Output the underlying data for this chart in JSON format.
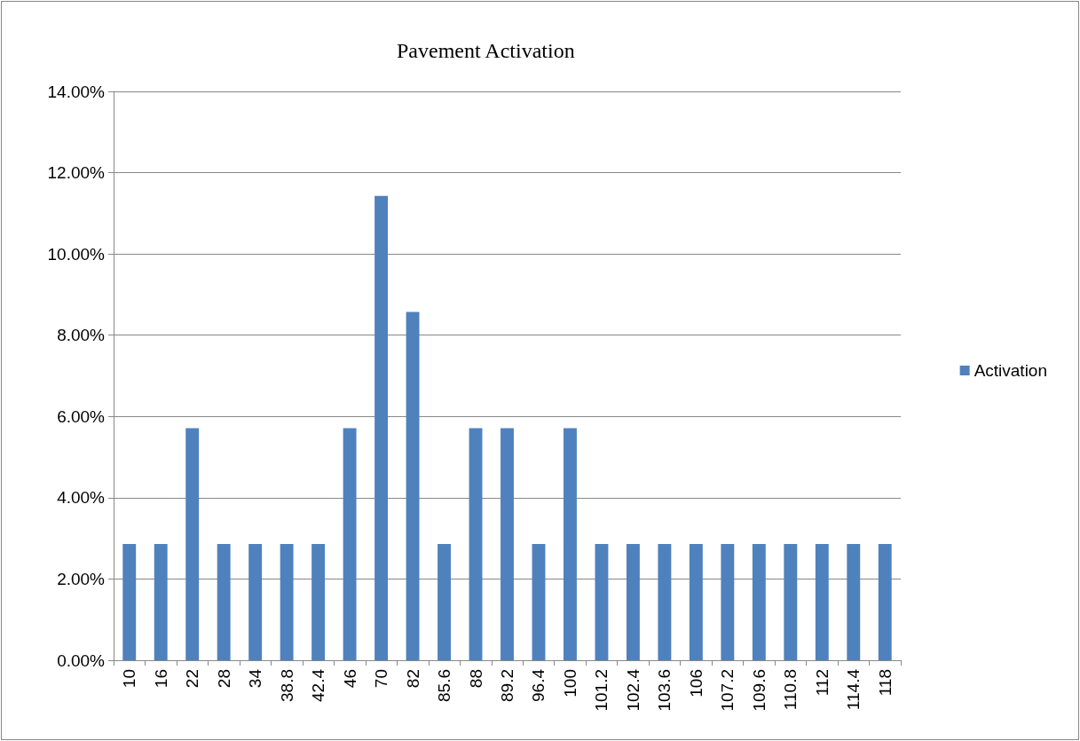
{
  "chart_data": {
    "type": "bar",
    "title": "Pavement Activation",
    "categories": [
      "10",
      "16",
      "22",
      "28",
      "34",
      "38.8",
      "42.4",
      "46",
      "70",
      "82",
      "85.6",
      "88",
      "89.2",
      "96.4",
      "100",
      "101.2",
      "102.4",
      "103.6",
      "106",
      "107.2",
      "109.6",
      "110.8",
      "112",
      "114.4",
      "118"
    ],
    "series": [
      {
        "name": "Activation",
        "color": "#4f81bd",
        "values": [
          2.86,
          2.86,
          5.71,
          2.86,
          2.86,
          2.86,
          2.86,
          5.71,
          11.43,
          8.57,
          2.86,
          5.71,
          5.71,
          2.86,
          5.71,
          2.86,
          2.86,
          2.86,
          2.86,
          2.86,
          2.86,
          2.86,
          2.86,
          2.86,
          2.86
        ]
      }
    ],
    "ylim": [
      0,
      14
    ],
    "yticks": [
      {
        "value": 0,
        "label": "0.00%"
      },
      {
        "value": 2,
        "label": "2.00%"
      },
      {
        "value": 4,
        "label": "4.00%"
      },
      {
        "value": 6,
        "label": "6.00%"
      },
      {
        "value": 8,
        "label": "8.00%"
      },
      {
        "value": 10,
        "label": "10.00%"
      },
      {
        "value": 12,
        "label": "12.00%"
      },
      {
        "value": 14,
        "label": "14.00%"
      }
    ],
    "grid": "y",
    "legend": "right"
  }
}
